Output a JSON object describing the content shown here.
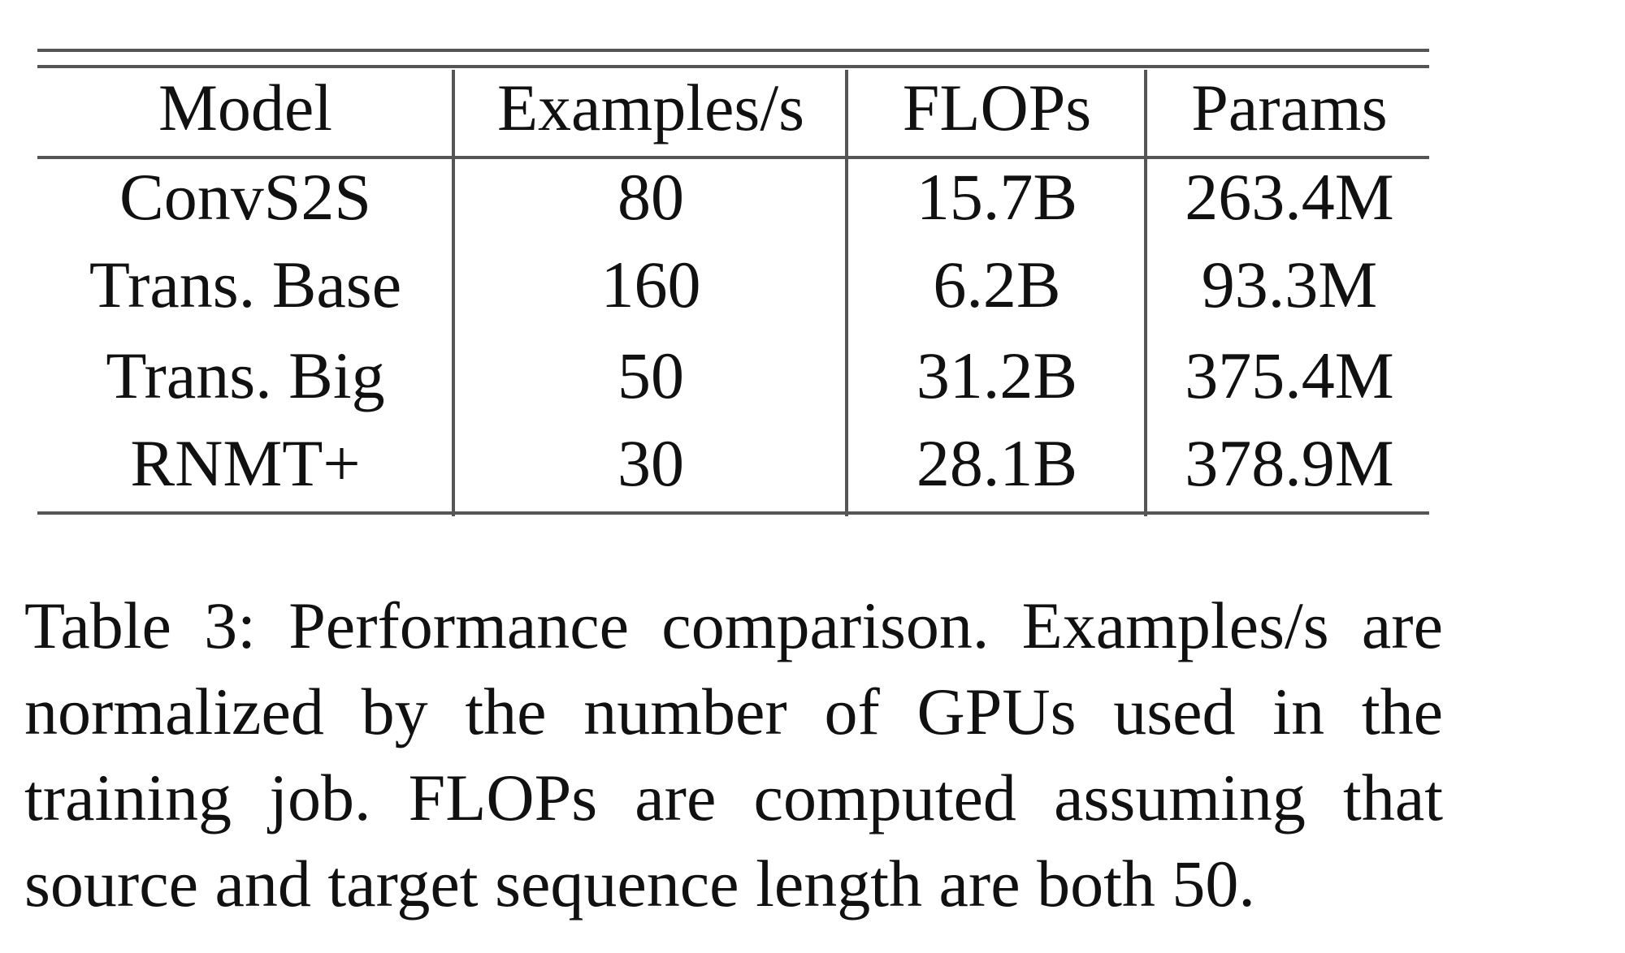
{
  "table": {
    "headers": [
      "Model",
      "Examples/s",
      "FLOPs",
      "Params"
    ],
    "rows": [
      [
        "ConvS2S",
        "80",
        "15.7B",
        "263.4M"
      ],
      [
        "Trans. Base",
        "160",
        "6.2B",
        "93.3M"
      ],
      [
        "Trans. Big",
        "50",
        "31.2B",
        "375.4M"
      ],
      [
        "RNMT+",
        "30",
        "28.1B",
        "378.9M"
      ]
    ]
  },
  "caption": "Table 3: Performance comparison. Examples/s are normalized by the number of GPUs used in the training job. FLOPs are computed assuming that source and target sequence length are both 50."
}
